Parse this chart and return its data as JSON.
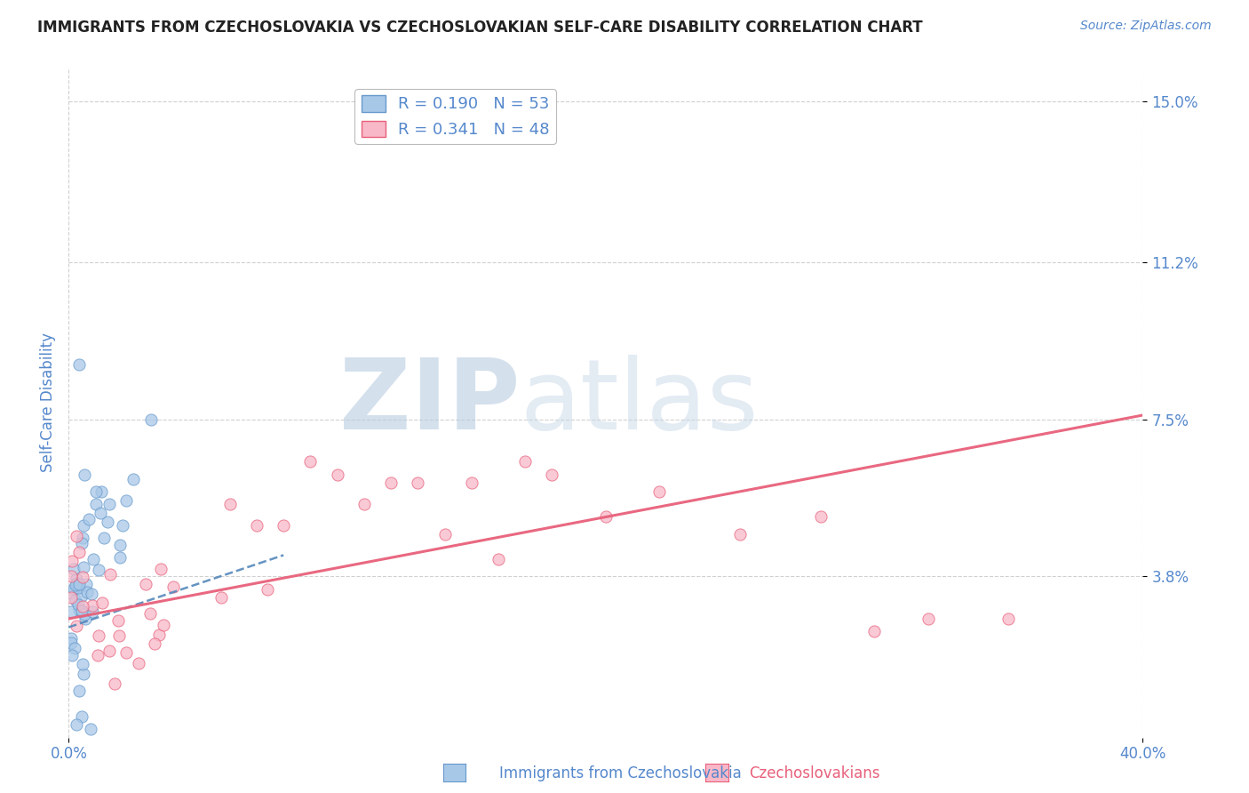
{
  "title": "IMMIGRANTS FROM CZECHOSLOVAKIA VS CZECHOSLOVAKIAN SELF-CARE DISABILITY CORRELATION CHART",
  "source": "Source: ZipAtlas.com",
  "ylabel": "Self-Care Disability",
  "xlim": [
    0.0,
    0.4
  ],
  "ylim": [
    0.0,
    0.158
  ],
  "xticks": [
    0.0,
    0.4
  ],
  "xticklabels": [
    "0.0%",
    "40.0%"
  ],
  "ytick_positions": [
    0.038,
    0.075,
    0.112,
    0.15
  ],
  "ytick_labels": [
    "3.8%",
    "7.5%",
    "11.2%",
    "15.0%"
  ],
  "grid_color": "#d0d0d0",
  "background_color": "#ffffff",
  "watermark_zip": "ZIP",
  "watermark_atlas": "atlas",
  "blue_color": "#a8c8e8",
  "blue_edge": "#6699cc",
  "pink_color": "#f8b8c8",
  "pink_edge": "#e8607a",
  "blue_R": 0.19,
  "blue_N": 53,
  "pink_R": 0.341,
  "pink_N": 48,
  "blue_line_color": "#5588bb",
  "pink_line_color": "#e8607a",
  "title_color": "#222222",
  "label_color": "#5588cc",
  "legend_label_blue": "R = 0.190   N = 53",
  "legend_label_pink": "R = 0.341   N = 48",
  "bottom_label_blue": "Immigrants from Czechoslovakia",
  "bottom_label_pink": "Czechoslovakians",
  "blue_line_x": [
    0.0,
    0.08
  ],
  "blue_line_y": [
    0.026,
    0.043
  ],
  "pink_line_x": [
    0.0,
    0.4
  ],
  "pink_line_y": [
    0.028,
    0.076
  ]
}
